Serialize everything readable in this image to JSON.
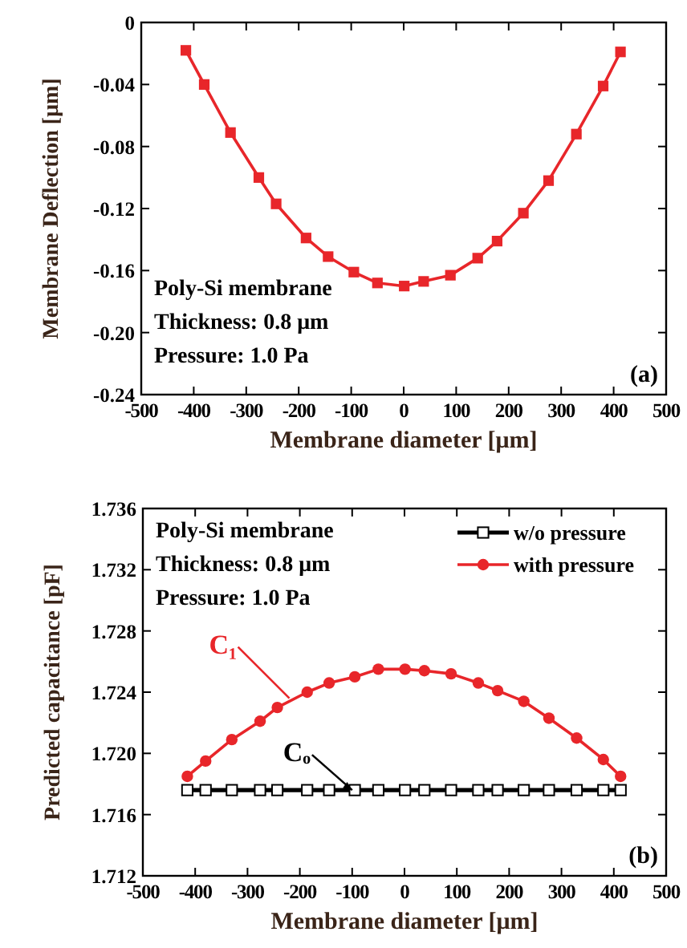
{
  "chart_data": [
    {
      "type": "line",
      "xlabel": "Membrane diameter [μm]",
      "ylabel": "Membrane Deflection [μm]",
      "xlim": [
        -500,
        500
      ],
      "xticks": [
        -500,
        -400,
        -300,
        -200,
        -100,
        0,
        100,
        200,
        300,
        400,
        500
      ],
      "ylim": [
        -0.24,
        0
      ],
      "yticks": [
        0,
        -0.04,
        -0.08,
        -0.12,
        -0.16,
        {
          "value": -0.2,
          "label": "-0.20"
        },
        -0.24
      ],
      "legend": false,
      "grid": false,
      "annotations": [
        "Poly-Si membrane",
        "Thickness: 0.8 μm",
        "Pressure: 1.0 Pa",
        "(a)"
      ],
      "series": [
        {
          "color": "#e8262a",
          "marker": "square",
          "x": [
            -415,
            -380,
            -330,
            -276,
            -243,
            -186,
            -144,
            -95,
            -50,
            1,
            38,
            89,
            141,
            178,
            228,
            276,
            329,
            380,
            413
          ],
          "values": [
            -0.018,
            -0.04,
            -0.071,
            -0.1,
            -0.117,
            -0.139,
            -0.151,
            -0.161,
            -0.168,
            -0.17,
            -0.167,
            -0.163,
            -0.152,
            -0.141,
            -0.123,
            -0.102,
            -0.072,
            -0.041,
            -0.019
          ]
        }
      ]
    },
    {
      "type": "line",
      "xlabel": "Membrane diameter [μm]",
      "ylabel": "Predicted capacitance [pF]",
      "xlim": [
        -500,
        500
      ],
      "xticks": [
        -500,
        -400,
        -300,
        -200,
        -100,
        0,
        100,
        200,
        300,
        400,
        500
      ],
      "ylim": [
        1.712,
        1.736
      ],
      "yticks": [
        1.712,
        1.716,
        {
          "value": 1.72,
          "label": "1.720"
        },
        1.724,
        1.728,
        1.732,
        1.736
      ],
      "legend": "top right",
      "grid": false,
      "annotations": [
        "Poly-Si membrane",
        "Thickness: 0.8 μm",
        "Pressure: 1.0 Pa",
        "(b)",
        {
          "text": "C₁",
          "x": -220,
          "y": 1.7236
        },
        {
          "text": "Cₒ",
          "x": -100,
          "y": 1.7176
        }
      ],
      "series": [
        {
          "name": "w/o pressure",
          "color": "#000000",
          "marker": "square",
          "x": [
            -415,
            -380,
            -330,
            -276,
            -243,
            -186,
            -144,
            -95,
            -50,
            1,
            38,
            89,
            141,
            178,
            228,
            276,
            329,
            380,
            413
          ],
          "values": [
            1.7176,
            1.7176,
            1.7176,
            1.7176,
            1.7176,
            1.7176,
            1.7176,
            1.7176,
            1.7176,
            1.7176,
            1.7176,
            1.7176,
            1.7176,
            1.7176,
            1.7176,
            1.7176,
            1.7176,
            1.7176,
            1.7176
          ]
        },
        {
          "name": "with pressure",
          "color": "#e8262a",
          "marker": "circle",
          "x": [
            -415,
            -380,
            -330,
            -276,
            -243,
            -186,
            -144,
            -95,
            -50,
            1,
            38,
            89,
            141,
            178,
            228,
            276,
            329,
            380,
            413
          ],
          "values": [
            1.7185,
            1.7195,
            1.7209,
            1.7221,
            1.723,
            1.724,
            1.7246,
            1.725,
            1.7255,
            1.7255,
            1.7254,
            1.7252,
            1.7246,
            1.7241,
            1.7234,
            1.7223,
            1.721,
            1.7196,
            1.7185
          ]
        }
      ]
    }
  ]
}
